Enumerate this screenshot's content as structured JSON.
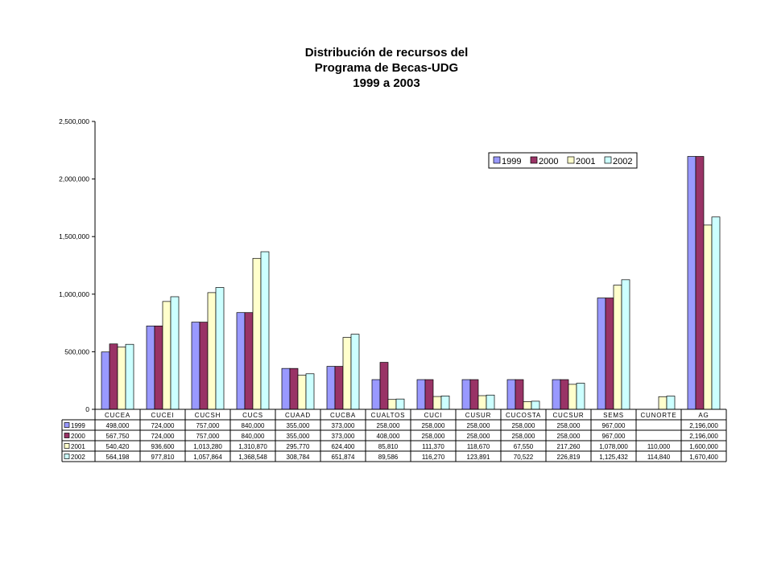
{
  "title_lines": [
    "Distribución de recursos del",
    "Programa de Becas-UDG",
    "1999 a 2003"
  ],
  "chart_data": {
    "type": "bar",
    "title": "Distribución de recursos del Programa de Becas-UDG 1999 a 2003",
    "categories": [
      "CUCEA",
      "CUCEI",
      "CUCSH",
      "CUCS",
      "CUAAD",
      "CUCBA",
      "CUALTOS",
      "CUCI",
      "CUSUR",
      "CUCOSTA",
      "CUCSUR",
      "SEMS",
      "CUNORTE",
      "AG"
    ],
    "series": [
      {
        "name": "1999",
        "color": "#9999ff",
        "values": [
          498000,
          724000,
          757000,
          840000,
          355000,
          373000,
          258000,
          258000,
          258000,
          258000,
          258000,
          967000,
          null,
          2196000
        ],
        "labels": [
          "498,000",
          "724,000",
          "757,000",
          "840,000",
          "355,000",
          "373,000",
          "258,000",
          "258,000",
          "258,000",
          "258,000",
          "258,000",
          "967,000",
          "",
          "2,196,000"
        ]
      },
      {
        "name": "2000",
        "color": "#993366",
        "values": [
          567750,
          724000,
          757000,
          840000,
          355000,
          373000,
          408000,
          258000,
          258000,
          258000,
          258000,
          967000,
          null,
          2196000
        ],
        "labels": [
          "567,750",
          "724,000",
          "757,000",
          "840,000",
          "355,000",
          "373,000",
          "408,000",
          "258,000",
          "258,000",
          "258,000",
          "258,000",
          "967,000",
          "",
          "2,196,000"
        ]
      },
      {
        "name": "2001",
        "color": "#ffffcc",
        "values": [
          540420,
          936600,
          1013280,
          1310870,
          295770,
          624400,
          85810,
          111370,
          118670,
          67550,
          217260,
          1078000,
          110000,
          1600000
        ],
        "labels": [
          "540,420",
          "936,600",
          "1,013,280",
          "1,310,870",
          "295,770",
          "624,400",
          "85,810",
          "111,370",
          "118,670",
          "67,550",
          "217,260",
          "1,078,000",
          "110,000",
          "1,600,000"
        ]
      },
      {
        "name": "2002",
        "color": "#ccffff",
        "values": [
          564198,
          977810,
          1057864,
          1368548,
          308784,
          651874,
          89586,
          116270,
          123891,
          70522,
          226819,
          1125432,
          114840,
          1670400
        ],
        "labels": [
          "564,198",
          "977,810",
          "1,057,864",
          "1,368,548",
          "308,784",
          "651,874",
          "89,586",
          "116,270",
          "123,891",
          "70,522",
          "226,819",
          "1,125,432",
          "114,840",
          "1,670,400"
        ]
      }
    ],
    "y_ticks": [
      0,
      500000,
      1000000,
      1500000,
      2000000,
      2500000
    ],
    "y_tick_labels": [
      "0",
      "500,000",
      "1,000,000",
      "1,500,000",
      "2,000,000",
      "2,500,000"
    ],
    "ylim": [
      0,
      2500000
    ],
    "legend_position": "top-right",
    "grid": false,
    "data_table": true
  }
}
